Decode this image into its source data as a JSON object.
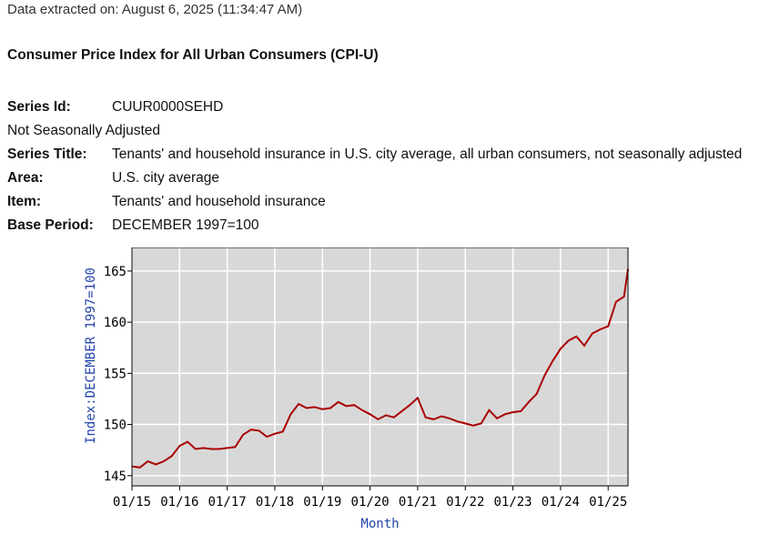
{
  "header": {
    "extracted": "Data extracted on: August 6, 2025 (11:34:47 AM)",
    "title": "Consumer Price Index for All Urban Consumers (CPI-U)"
  },
  "meta": {
    "series_id_label": "Series Id:",
    "series_id": "CUUR0000SEHD",
    "adjustment": "Not Seasonally Adjusted",
    "series_title_label": "Series Title:",
    "series_title": "Tenants' and household insurance in U.S. city average, all urban consumers, not seasonally adjusted",
    "area_label": "Area:",
    "area": "U.S. city average",
    "item_label": "Item:",
    "item": "Tenants' and household insurance",
    "base_label": "Base Period:",
    "base": "DECEMBER 1997=100"
  },
  "chart_data": {
    "type": "line",
    "xlabel": "Month",
    "ylabel": "Index:DECEMBER 1997=100",
    "x_ticks": [
      "01/15",
      "01/16",
      "01/17",
      "01/18",
      "01/19",
      "01/20",
      "01/21",
      "01/22",
      "01/23",
      "01/24",
      "01/25"
    ],
    "y_ticks": [
      145,
      150,
      155,
      160,
      165
    ],
    "ylim": [
      144,
      167.3
    ],
    "xlim": [
      "2015-01",
      "2025-06"
    ],
    "grid": true,
    "colors": {
      "line": "#aa0000",
      "plot_bg": "#d8d8d8",
      "grid": "#ffffff"
    },
    "series": [
      {
        "x": [
          "2015-01",
          "2015-03",
          "2015-05",
          "2015-07",
          "2015-09",
          "2015-11",
          "2016-01",
          "2016-03",
          "2016-05",
          "2016-07",
          "2016-09",
          "2016-11",
          "2017-01",
          "2017-03",
          "2017-05",
          "2017-07",
          "2017-09",
          "2017-11",
          "2018-01",
          "2018-03",
          "2018-05",
          "2018-07",
          "2018-09",
          "2018-11",
          "2019-01",
          "2019-03",
          "2019-05",
          "2019-07",
          "2019-09",
          "2019-11",
          "2020-01",
          "2020-03",
          "2020-05",
          "2020-07",
          "2020-09",
          "2020-11",
          "2021-01",
          "2021-03",
          "2021-05",
          "2021-07",
          "2021-09",
          "2021-11",
          "2022-01",
          "2022-03",
          "2022-05",
          "2022-07",
          "2022-09",
          "2022-11",
          "2023-01",
          "2023-03",
          "2023-05",
          "2023-07",
          "2023-09",
          "2023-11",
          "2024-01",
          "2024-03",
          "2024-05",
          "2024-07",
          "2024-09",
          "2024-11",
          "2025-01",
          "2025-03",
          "2025-05",
          "2025-06"
        ],
        "values": [
          145.9,
          145.8,
          146.4,
          146.1,
          146.4,
          146.9,
          147.9,
          148.3,
          147.6,
          147.7,
          147.6,
          147.6,
          147.7,
          147.8,
          149.0,
          149.5,
          149.4,
          148.8,
          149.1,
          149.3,
          151.0,
          152.0,
          151.6,
          151.7,
          151.5,
          151.6,
          152.2,
          151.8,
          151.9,
          151.4,
          151.0,
          150.5,
          150.9,
          150.7,
          151.3,
          151.9,
          152.6,
          150.7,
          150.5,
          150.8,
          150.6,
          150.3,
          150.1,
          149.9,
          150.1,
          151.4,
          150.6,
          151.0,
          151.2,
          151.3,
          152.2,
          153.0,
          154.8,
          156.2,
          157.4,
          158.2,
          158.6,
          157.7,
          158.9,
          159.3,
          159.6,
          162.0,
          162.5,
          165.2
        ]
      }
    ]
  }
}
